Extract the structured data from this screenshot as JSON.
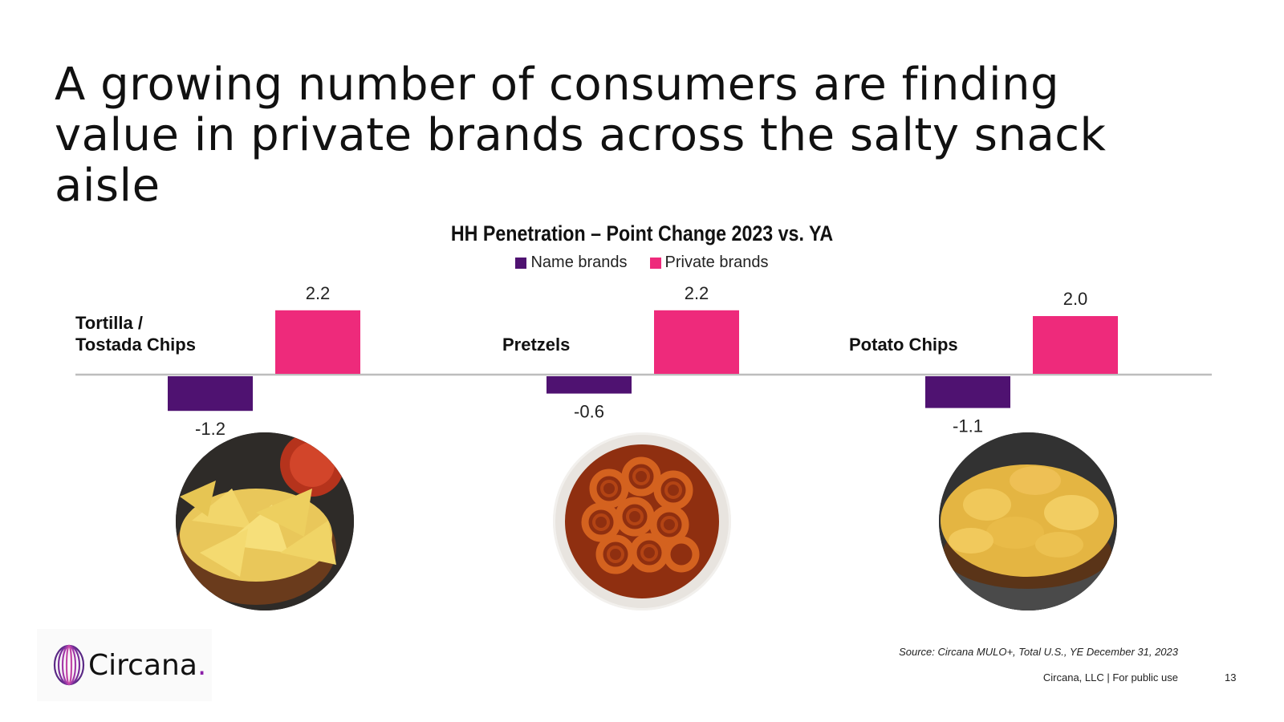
{
  "slide": {
    "title": "A growing number of consumers are finding value in private brands across the salty snack aisle",
    "source": "Source: Circana MULO+, Total U.S., YE December 31, 2023",
    "footer": "Circana, LLC |  For public use",
    "page_number": "13",
    "logo_text": "Circana",
    "logo_dot": "."
  },
  "chart_data": {
    "type": "bar",
    "title": "HH Penetration – Point Change 2023 vs. YA",
    "categories": [
      "Tortilla /\nTostada Chips",
      "Pretzels",
      "Potato Chips"
    ],
    "series": [
      {
        "name": "Name brands",
        "color": "#4f1271",
        "values": [
          -1.2,
          -0.6,
          -1.1
        ],
        "labels": [
          "-1.2",
          "-0.6",
          "-1.1"
        ]
      },
      {
        "name": "Private brands",
        "color": "#ee2a7b",
        "values": [
          2.2,
          2.2,
          2.0
        ],
        "labels": [
          "2.2",
          "2.2",
          "2.0"
        ]
      }
    ],
    "legend_position": "top-center",
    "grid": false
  },
  "images": [
    {
      "name": "tortilla-chips-photo"
    },
    {
      "name": "pretzels-photo"
    },
    {
      "name": "potato-chips-photo"
    }
  ]
}
